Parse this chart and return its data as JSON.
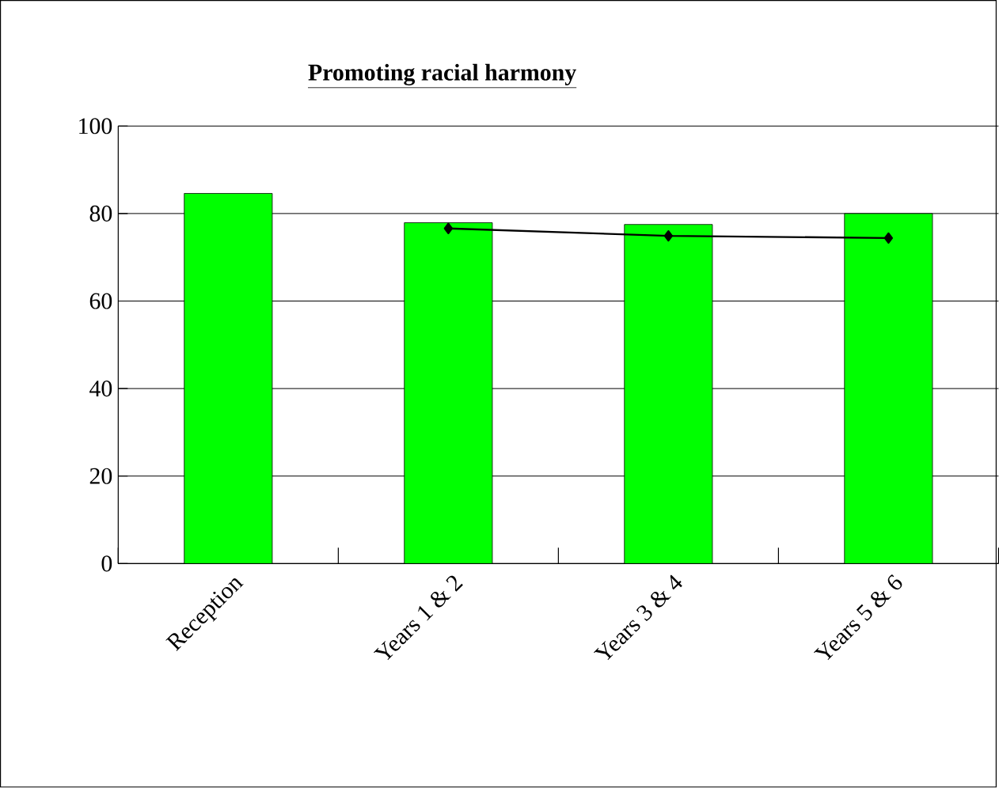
{
  "chart_data": {
    "type": "bar",
    "title": "Promoting racial harmony",
    "categories": [
      "Reception",
      "Years 1 & 2",
      "Years 3 & 4",
      "Years 5 & 6"
    ],
    "series": [
      {
        "color": "#00ff00",
        "values": [
          84.6,
          77.9,
          77.5,
          80
        ]
      },
      {
        "type": "line",
        "color": "#000000",
        "marker": "diamond",
        "line_style": "solid",
        "values": [
          null,
          76.6,
          74.9,
          74.4
        ]
      }
    ],
    "ylim": [
      0,
      100
    ],
    "yticks": [
      0,
      20,
      40,
      60,
      80,
      100
    ],
    "grid": "y"
  }
}
